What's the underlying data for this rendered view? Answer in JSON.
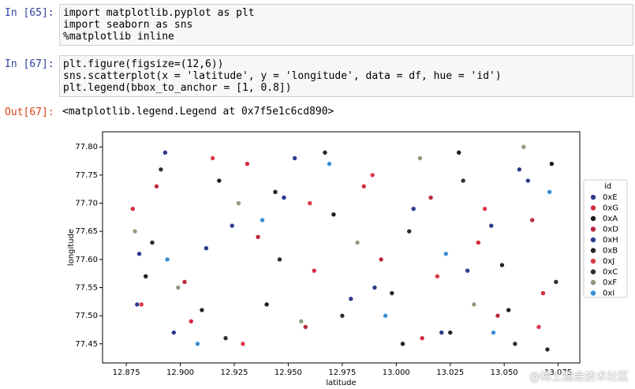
{
  "cells": [
    {
      "prompt": "In [65]:",
      "lines": [
        "import matplotlib.pyplot as plt",
        "import seaborn as sns",
        "%matplotlib inline"
      ]
    },
    {
      "prompt": "In [67]:",
      "lines": [
        "plt.figure(figsize=(12,6))",
        "sns.scatterplot(x = 'latitude', y = 'longitude', data = df, hue = 'id')",
        "plt.legend(bbox_to_anchor = [1, 0.8])"
      ]
    },
    {
      "prompt": "Out[67]:",
      "lines": [
        "<matplotlib.legend.Legend at 0x7f5e1c6cd890>"
      ]
    }
  ],
  "watermark": "@稀土掘金技术社区",
  "chart_data": {
    "type": "scatter",
    "x_label": "latitude",
    "y_label": "longitude",
    "legend_title": "id",
    "legend_position": "right",
    "xlim": [
      12.864,
      13.085
    ],
    "ylim": [
      77.416,
      77.827
    ],
    "xticks": [
      12.875,
      {
        "value": 12.9,
        "label": "12.900"
      },
      12.925,
      {
        "value": 12.95,
        "label": "12.950"
      },
      12.975,
      {
        "value": 13.0,
        "label": "13.000"
      },
      13.025,
      {
        "value": 13.05,
        "label": "13.050"
      },
      13.075
    ],
    "yticks": [
      77.45,
      {
        "value": 77.5,
        "label": "77.50"
      },
      77.55,
      {
        "value": 77.6,
        "label": "77.60"
      },
      77.65,
      {
        "value": 77.7,
        "label": "77.70"
      },
      77.75,
      {
        "value": 77.8,
        "label": "77.80"
      }
    ],
    "series": [
      {
        "name": "0xE",
        "color": "#2b3a8c",
        "x": [
          12.893,
          12.912,
          12.948,
          12.99,
          13.021,
          13.044,
          13.061,
          12.88
        ],
        "values": [
          77.79,
          77.62,
          77.71,
          77.55,
          77.47,
          77.66,
          77.74,
          77.52
        ]
      },
      {
        "name": "0xG",
        "color": "#d12c3c",
        "x": [
          12.878,
          12.905,
          12.931,
          12.962,
          12.985,
          13.012,
          13.038,
          13.068
        ],
        "values": [
          77.69,
          77.49,
          77.77,
          77.58,
          77.73,
          77.46,
          77.63,
          77.54
        ]
      },
      {
        "name": "0xA",
        "color": "#1c1c1c",
        "x": [
          12.884,
          12.918,
          12.94,
          12.971,
          13.003,
          13.029,
          13.052,
          13.072
        ],
        "values": [
          77.57,
          77.74,
          77.52,
          77.68,
          77.45,
          77.79,
          77.51,
          77.77
        ]
      },
      {
        "name": "0xD",
        "color": "#b82a3a",
        "x": [
          12.889,
          12.902,
          12.936,
          12.958,
          12.993,
          13.016,
          13.047,
          13.063
        ],
        "values": [
          77.73,
          77.56,
          77.64,
          77.48,
          77.6,
          77.71,
          77.5,
          77.67
        ]
      },
      {
        "name": "0xH",
        "color": "#303a90",
        "x": [
          12.897,
          12.924,
          12.953,
          12.979,
          13.008,
          13.033,
          13.057,
          12.881
        ],
        "values": [
          77.47,
          77.66,
          77.78,
          77.53,
          77.69,
          77.58,
          77.76,
          77.61
        ]
      },
      {
        "name": "0xB",
        "color": "#262626",
        "x": [
          12.887,
          12.91,
          12.944,
          12.967,
          12.998,
          13.025,
          13.049,
          13.07
        ],
        "values": [
          77.63,
          77.51,
          77.72,
          77.79,
          77.54,
          77.47,
          77.59,
          77.44
        ]
      },
      {
        "name": "0xJ",
        "color": "#d93a48",
        "x": [
          12.882,
          12.915,
          12.929,
          12.96,
          12.989,
          13.019,
          13.041,
          13.066
        ],
        "values": [
          77.52,
          77.78,
          77.45,
          77.7,
          77.75,
          77.57,
          77.69,
          77.48
        ]
      },
      {
        "name": "0xC",
        "color": "#2e2e2e",
        "x": [
          12.891,
          12.921,
          12.946,
          12.975,
          13.006,
          13.031,
          13.055,
          13.074
        ],
        "values": [
          77.76,
          77.46,
          77.6,
          77.5,
          77.65,
          77.74,
          77.45,
          77.56
        ]
      },
      {
        "name": "0xF",
        "color": "#8e9b7e",
        "x": [
          12.899,
          12.927,
          12.956,
          12.982,
          13.011,
          13.036,
          13.059,
          12.879
        ],
        "values": [
          77.55,
          77.7,
          77.49,
          77.63,
          77.78,
          77.52,
          77.8,
          77.65
        ]
      },
      {
        "name": "0xI",
        "color": "#3a8fd4",
        "x": [
          12.894,
          12.908,
          12.938,
          12.969,
          12.995,
          13.023,
          13.045,
          13.071
        ],
        "values": [
          77.6,
          77.45,
          77.67,
          77.77,
          77.5,
          77.61,
          77.47,
          77.72
        ]
      }
    ]
  }
}
